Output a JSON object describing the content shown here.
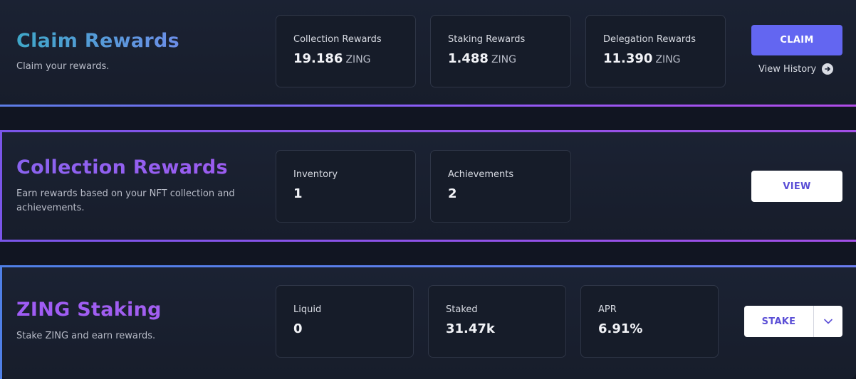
{
  "claim": {
    "title": "Claim Rewards",
    "subtitle": "Claim your rewards.",
    "cards": [
      {
        "label": "Collection Rewards",
        "value": "19.186",
        "unit": "ZING"
      },
      {
        "label": "Staking Rewards",
        "value": "1.488",
        "unit": "ZING"
      },
      {
        "label": "Delegation Rewards",
        "value": "11.390",
        "unit": "ZING"
      }
    ],
    "button": "CLAIM",
    "history_link": "View History"
  },
  "collection": {
    "title": "Collection Rewards",
    "subtitle_line1": "Earn rewards based on your NFT collection and",
    "subtitle_line2": "achievements.",
    "cards": [
      {
        "label": "Inventory",
        "value": "1"
      },
      {
        "label": "Achievements",
        "value": "2"
      }
    ],
    "button": "VIEW"
  },
  "staking": {
    "title": "ZING Staking",
    "subtitle": "Stake ZING and earn rewards.",
    "cards": [
      {
        "label": "Liquid",
        "value": "0"
      },
      {
        "label": "Staked",
        "value": "31.47k"
      },
      {
        "label": "APR",
        "value": "6.91%"
      }
    ],
    "button": "STAKE",
    "dropdown_icon": "chevron-down-icon"
  },
  "colors": {
    "accent": "#6366f1",
    "background": "#111522",
    "card": "#161c29"
  }
}
